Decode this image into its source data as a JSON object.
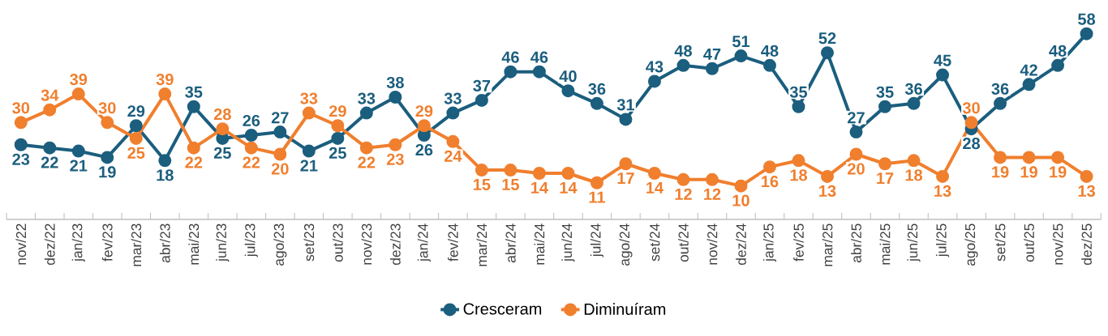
{
  "chart_data": {
    "type": "line",
    "categories": [
      "nov/22",
      "dez/22",
      "jan/23",
      "fev/23",
      "mar/23",
      "abr/23",
      "mai/23",
      "jun/23",
      "jul/23",
      "ago/23",
      "set/23",
      "out/23",
      "nov/23",
      "dez/23",
      "jan/24",
      "fev/24",
      "mar/24",
      "abr/24",
      "mai/24",
      "jun/24",
      "jul/24",
      "ago/24",
      "set/24",
      "out/24",
      "nov/24",
      "dez/24",
      "jan/25",
      "fev/25",
      "mar/25",
      "abr/25",
      "mai/25",
      "jun/25",
      "jul/25",
      "ago/25",
      "set/25",
      "out/25",
      "nov/25",
      "dez/25"
    ],
    "series": [
      {
        "name": "Cresceram",
        "color": "#1b5e7e",
        "values": [
          23,
          22,
          21,
          19,
          29,
          18,
          35,
          25,
          26,
          27,
          21,
          25,
          33,
          38,
          26,
          33,
          37,
          46,
          46,
          40,
          36,
          31,
          43,
          48,
          47,
          51,
          48,
          35,
          52,
          27,
          35,
          36,
          45,
          28,
          36,
          42,
          48,
          58
        ]
      },
      {
        "name": "Diminuíram",
        "color": "#f07f2e",
        "values": [
          30,
          34,
          39,
          30,
          25,
          39,
          22,
          28,
          22,
          20,
          33,
          29,
          22,
          23,
          29,
          24,
          15,
          15,
          14,
          14,
          11,
          17,
          14,
          12,
          12,
          10,
          16,
          18,
          13,
          20,
          17,
          18,
          13,
          30,
          19,
          19,
          19,
          13
        ]
      }
    ],
    "tick_labels": "x",
    "data_labels": true,
    "marker": "circle",
    "line_style": "solid",
    "legend": "bottom",
    "grid": false
  }
}
